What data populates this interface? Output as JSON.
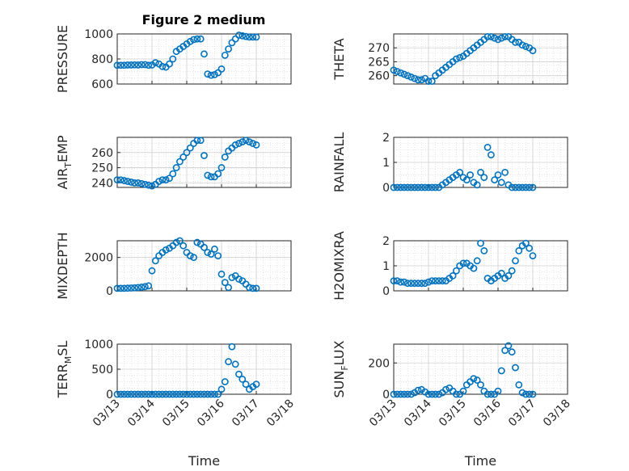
{
  "title": "Figure 2 medium",
  "marker_color": "#0072BD",
  "grid_color": "#d0d0d0",
  "axis_color": "#262626",
  "x_tick_labels": [
    "03/13",
    "03/14",
    "03/15",
    "03/16",
    "03/17",
    "03/18"
  ],
  "xlabel": "Time",
  "chart_data": [
    {
      "type": "scatter",
      "name": "pressure",
      "ylabel_main": "PRESSURE",
      "ylabel_sub": "",
      "xlim": [
        0,
        5
      ],
      "ylim": [
        600,
        1000
      ],
      "yticks": [
        600,
        800,
        1000
      ],
      "x": [
        0,
        0.1,
        0.2,
        0.3,
        0.4,
        0.5,
        0.6,
        0.7,
        0.8,
        0.9,
        1.0,
        1.1,
        1.2,
        1.3,
        1.4,
        1.5,
        1.6,
        1.7,
        1.8,
        1.9,
        2.0,
        2.1,
        2.2,
        2.3,
        2.4,
        2.5,
        2.6,
        2.7,
        2.8,
        2.9,
        3.0,
        3.1,
        3.2,
        3.3,
        3.4,
        3.5,
        3.6,
        3.7,
        3.8,
        3.9,
        4.0
      ],
      "y": [
        750,
        750,
        750,
        752,
        752,
        753,
        752,
        755,
        755,
        750,
        752,
        770,
        760,
        740,
        735,
        760,
        800,
        860,
        880,
        900,
        920,
        940,
        955,
        960,
        960,
        840,
        680,
        670,
        675,
        690,
        720,
        830,
        880,
        930,
        960,
        990,
        985,
        980,
        975,
        975,
        975
      ]
    },
    {
      "type": "scatter",
      "name": "theta",
      "ylabel_main": "THETA",
      "ylabel_sub": "",
      "xlim": [
        0,
        5
      ],
      "ylim": [
        257,
        275
      ],
      "yticks": [
        260,
        265,
        270
      ],
      "x": [
        0,
        0.1,
        0.2,
        0.3,
        0.4,
        0.5,
        0.6,
        0.7,
        0.8,
        0.9,
        1.0,
        1.1,
        1.2,
        1.3,
        1.4,
        1.5,
        1.6,
        1.7,
        1.8,
        1.9,
        2.0,
        2.1,
        2.2,
        2.3,
        2.4,
        2.5,
        2.6,
        2.7,
        2.8,
        2.9,
        3.0,
        3.1,
        3.2,
        3.3,
        3.4,
        3.5,
        3.6,
        3.7,
        3.8,
        3.9,
        4.0
      ],
      "y": [
        262,
        261.5,
        261,
        260.5,
        260,
        259.5,
        259,
        258.5,
        258.5,
        259,
        258,
        258,
        260,
        261,
        262,
        263,
        264,
        265,
        266,
        266.5,
        267,
        268,
        269,
        270,
        271,
        272,
        273,
        274,
        274,
        273.5,
        273,
        273.5,
        274,
        274,
        273,
        272,
        272,
        271,
        270.5,
        270,
        269
      ]
    },
    {
      "type": "scatter",
      "name": "air_temp",
      "ylabel_main": "AIR",
      "ylabel_sub": "T",
      "ylabel_tail": "EMP",
      "xlim": [
        0,
        5
      ],
      "ylim": [
        237,
        270
      ],
      "yticks": [
        240,
        250,
        260
      ],
      "x": [
        0,
        0.1,
        0.2,
        0.3,
        0.4,
        0.5,
        0.6,
        0.7,
        0.8,
        0.9,
        1.0,
        1.1,
        1.2,
        1.3,
        1.4,
        1.5,
        1.6,
        1.7,
        1.8,
        1.9,
        2.0,
        2.1,
        2.2,
        2.3,
        2.4,
        2.5,
        2.6,
        2.7,
        2.8,
        2.9,
        3.0,
        3.1,
        3.2,
        3.3,
        3.4,
        3.5,
        3.6,
        3.7,
        3.8,
        3.9,
        4.0
      ],
      "y": [
        242,
        242,
        241.5,
        241,
        240.5,
        240,
        240,
        239.5,
        239,
        238.5,
        238,
        239,
        241,
        242,
        242,
        243,
        246,
        250,
        254,
        257,
        260,
        263,
        266,
        268,
        268,
        258,
        245,
        244,
        244,
        246,
        250,
        257,
        261,
        263,
        265,
        266,
        267,
        268,
        267,
        266,
        265
      ]
    },
    {
      "type": "scatter",
      "name": "rainfall",
      "ylabel_main": "RAINFALL",
      "ylabel_sub": "",
      "xlim": [
        0,
        5
      ],
      "ylim": [
        0,
        2
      ],
      "yticks": [
        0,
        1,
        2
      ],
      "x": [
        0,
        0.1,
        0.2,
        0.3,
        0.4,
        0.5,
        0.6,
        0.7,
        0.8,
        0.9,
        1.0,
        1.1,
        1.2,
        1.3,
        1.4,
        1.5,
        1.6,
        1.7,
        1.8,
        1.9,
        2.0,
        2.1,
        2.2,
        2.3,
        2.4,
        2.5,
        2.6,
        2.7,
        2.8,
        2.9,
        3.0,
        3.1,
        3.2,
        3.3,
        3.4,
        3.5,
        3.6,
        3.7,
        3.8,
        3.9,
        4.0
      ],
      "y": [
        0,
        0,
        0,
        0,
        0,
        0,
        0,
        0,
        0,
        0,
        0,
        0,
        0,
        0,
        0.1,
        0.2,
        0.3,
        0.4,
        0.5,
        0.6,
        0.4,
        0.3,
        0.5,
        0.2,
        0.1,
        0.6,
        0.4,
        1.6,
        1.3,
        0.3,
        0.5,
        0.2,
        0.6,
        0.1,
        0,
        0,
        0,
        0,
        0,
        0,
        0
      ]
    },
    {
      "type": "scatter",
      "name": "mixdepth",
      "ylabel_main": "MIXDEPTH",
      "ylabel_sub": "",
      "xlim": [
        0,
        5
      ],
      "ylim": [
        0,
        3000
      ],
      "yticks": [
        0,
        2000
      ],
      "x": [
        0,
        0.1,
        0.2,
        0.3,
        0.4,
        0.5,
        0.6,
        0.7,
        0.8,
        0.9,
        1.0,
        1.1,
        1.2,
        1.3,
        1.4,
        1.5,
        1.6,
        1.7,
        1.8,
        1.9,
        2.0,
        2.1,
        2.2,
        2.3,
        2.4,
        2.5,
        2.6,
        2.7,
        2.8,
        2.9,
        3.0,
        3.1,
        3.2,
        3.3,
        3.4,
        3.5,
        3.6,
        3.7,
        3.8,
        3.9,
        4.0
      ],
      "y": [
        150,
        150,
        150,
        160,
        170,
        180,
        200,
        220,
        250,
        300,
        1200,
        1800,
        2100,
        2300,
        2450,
        2550,
        2700,
        2900,
        3000,
        2700,
        2300,
        2100,
        2000,
        2900,
        2800,
        2600,
        2300,
        2200,
        2500,
        2100,
        1000,
        500,
        200,
        800,
        900,
        700,
        600,
        400,
        200,
        150,
        150
      ]
    },
    {
      "type": "scatter",
      "name": "h2omixra",
      "ylabel_main": "H2OMIXRA",
      "ylabel_sub": "",
      "xlim": [
        0,
        5
      ],
      "ylim": [
        0,
        2
      ],
      "yticks": [
        0,
        1,
        2
      ],
      "x": [
        0,
        0.1,
        0.2,
        0.3,
        0.4,
        0.5,
        0.6,
        0.7,
        0.8,
        0.9,
        1.0,
        1.1,
        1.2,
        1.3,
        1.4,
        1.5,
        1.6,
        1.7,
        1.8,
        1.9,
        2.0,
        2.1,
        2.2,
        2.3,
        2.4,
        2.5,
        2.6,
        2.7,
        2.8,
        2.9,
        3.0,
        3.1,
        3.2,
        3.3,
        3.4,
        3.5,
        3.6,
        3.7,
        3.8,
        3.9,
        4.0
      ],
      "y": [
        0.4,
        0.4,
        0.35,
        0.35,
        0.3,
        0.3,
        0.3,
        0.3,
        0.3,
        0.3,
        0.35,
        0.4,
        0.4,
        0.4,
        0.4,
        0.4,
        0.5,
        0.6,
        0.8,
        1.0,
        1.1,
        1.1,
        1.0,
        0.9,
        1.2,
        1.9,
        1.6,
        0.5,
        0.4,
        0.5,
        0.6,
        0.7,
        0.5,
        0.6,
        0.8,
        1.2,
        1.6,
        1.8,
        1.9,
        1.7,
        1.4
      ]
    },
    {
      "type": "scatter",
      "name": "terr_msl",
      "ylabel_main": "TERR",
      "ylabel_sub": "M",
      "ylabel_tail": "SL",
      "xlim": [
        0,
        5
      ],
      "ylim": [
        0,
        1000
      ],
      "yticks": [
        0,
        500,
        1000
      ],
      "x": [
        0,
        0.1,
        0.2,
        0.3,
        0.4,
        0.5,
        0.6,
        0.7,
        0.8,
        0.9,
        1.0,
        1.1,
        1.2,
        1.3,
        1.4,
        1.5,
        1.6,
        1.7,
        1.8,
        1.9,
        2.0,
        2.1,
        2.2,
        2.3,
        2.4,
        2.5,
        2.6,
        2.7,
        2.8,
        2.9,
        3.0,
        3.1,
        3.2,
        3.3,
        3.4,
        3.5,
        3.6,
        3.7,
        3.8,
        3.9,
        4.0
      ],
      "y": [
        0,
        0,
        0,
        0,
        0,
        0,
        0,
        0,
        0,
        0,
        0,
        0,
        0,
        0,
        0,
        0,
        0,
        0,
        0,
        0,
        0,
        0,
        0,
        0,
        0,
        0,
        0,
        0,
        0,
        0,
        100,
        250,
        650,
        950,
        600,
        400,
        300,
        200,
        100,
        150,
        200
      ]
    },
    {
      "type": "scatter",
      "name": "sun_flux",
      "ylabel_main": "SUN",
      "ylabel_sub": "F",
      "ylabel_tail": "LUX",
      "xlim": [
        0,
        5
      ],
      "ylim": [
        0,
        320
      ],
      "yticks": [
        0,
        200
      ],
      "x": [
        0,
        0.1,
        0.2,
        0.3,
        0.4,
        0.5,
        0.6,
        0.7,
        0.8,
        0.9,
        1.0,
        1.1,
        1.2,
        1.3,
        1.4,
        1.5,
        1.6,
        1.7,
        1.8,
        1.9,
        2.0,
        2.1,
        2.2,
        2.3,
        2.4,
        2.5,
        2.6,
        2.7,
        2.8,
        2.9,
        3.0,
        3.1,
        3.2,
        3.3,
        3.4,
        3.5,
        3.6,
        3.7,
        3.8,
        3.9,
        4.0
      ],
      "y": [
        0,
        0,
        0,
        0,
        0,
        0,
        10,
        25,
        30,
        15,
        0,
        0,
        0,
        0,
        10,
        30,
        40,
        20,
        0,
        0,
        20,
        60,
        80,
        100,
        90,
        60,
        20,
        0,
        0,
        0,
        20,
        150,
        280,
        310,
        270,
        170,
        60,
        10,
        0,
        0,
        0
      ]
    }
  ]
}
